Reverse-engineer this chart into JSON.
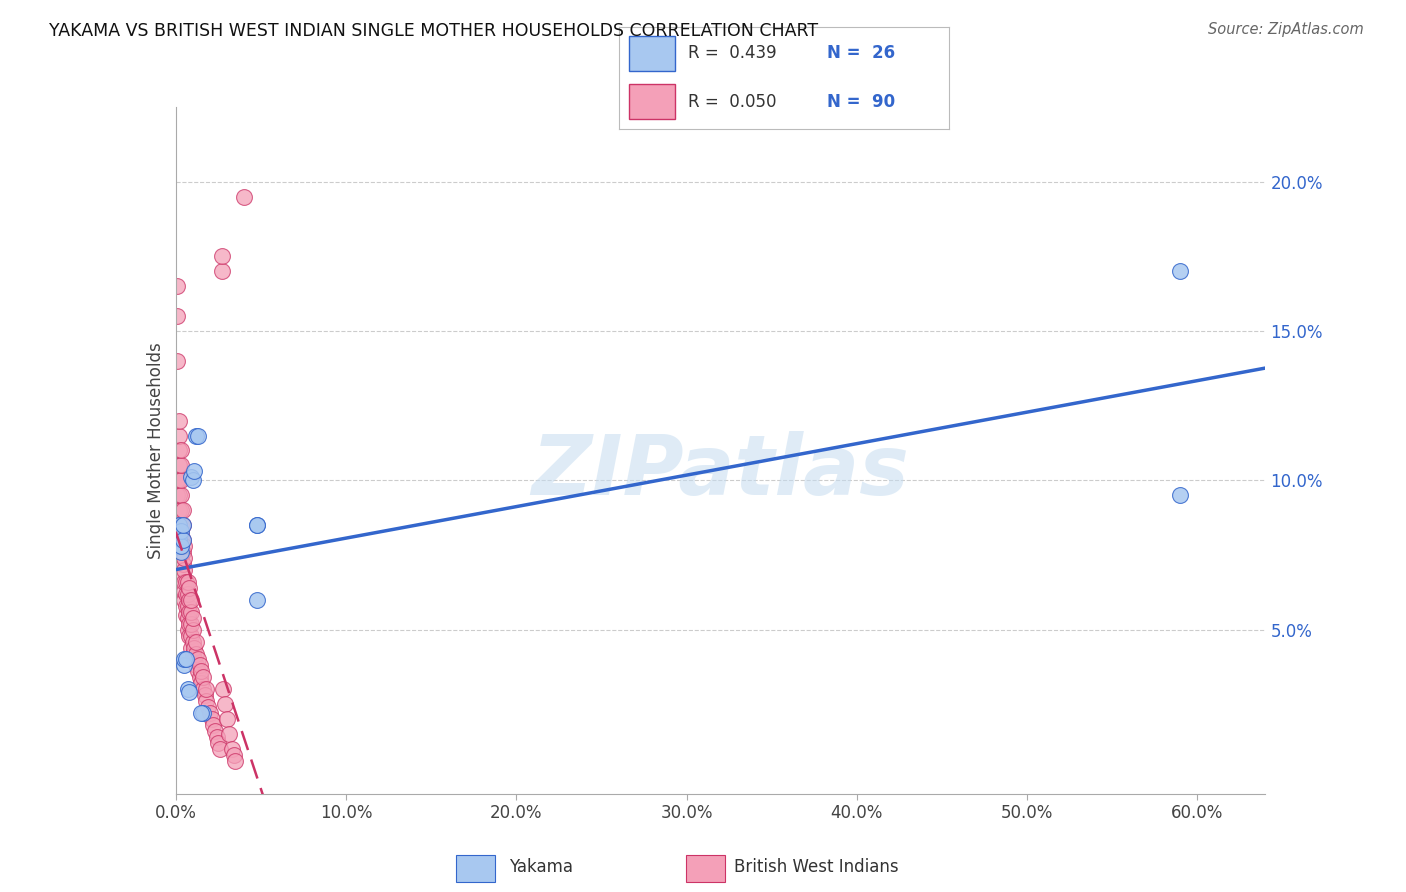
{
  "title": "YAKAMA VS BRITISH WEST INDIAN SINGLE MOTHER HOUSEHOLDS CORRELATION CHART",
  "source": "Source: ZipAtlas.com",
  "ylabel_label": "Single Mother Households",
  "legend_label_yakama": "Yakama",
  "legend_label_bwi": "British West Indians",
  "legend_R_yakama": "0.439",
  "legend_N_yakama": "26",
  "legend_R_bwi": "0.050",
  "legend_N_bwi": "90",
  "watermark": "ZIPatlas",
  "color_yakama": "#a8c8f0",
  "color_bwi": "#f4a0b8",
  "color_line_yakama": "#3366cc",
  "color_line_bwi": "#cc3366",
  "xlim": [
    0.0,
    0.64
  ],
  "ylim": [
    -0.005,
    0.225
  ],
  "yakama_x": [
    0.001,
    0.001,
    0.002,
    0.002,
    0.003,
    0.003,
    0.003,
    0.004,
    0.004,
    0.005,
    0.005,
    0.006,
    0.007,
    0.008,
    0.009,
    0.01,
    0.011,
    0.012,
    0.013,
    0.048,
    0.048,
    0.048,
    0.016,
    0.015,
    0.59,
    0.59
  ],
  "yakama_y": [
    0.078,
    0.082,
    0.08,
    0.085,
    0.076,
    0.078,
    0.083,
    0.08,
    0.085,
    0.038,
    0.04,
    0.04,
    0.03,
    0.029,
    0.101,
    0.1,
    0.103,
    0.115,
    0.115,
    0.085,
    0.085,
    0.06,
    0.022,
    0.022,
    0.17,
    0.095
  ],
  "bwi_x": [
    0.001,
    0.001,
    0.001,
    0.001,
    0.001,
    0.002,
    0.002,
    0.002,
    0.002,
    0.002,
    0.002,
    0.002,
    0.003,
    0.003,
    0.003,
    0.003,
    0.003,
    0.003,
    0.003,
    0.003,
    0.003,
    0.004,
    0.004,
    0.004,
    0.004,
    0.004,
    0.004,
    0.005,
    0.005,
    0.005,
    0.005,
    0.005,
    0.005,
    0.006,
    0.006,
    0.006,
    0.006,
    0.007,
    0.007,
    0.007,
    0.007,
    0.007,
    0.008,
    0.008,
    0.008,
    0.008,
    0.008,
    0.009,
    0.009,
    0.009,
    0.009,
    0.009,
    0.01,
    0.01,
    0.01,
    0.01,
    0.011,
    0.011,
    0.012,
    0.012,
    0.012,
    0.013,
    0.013,
    0.014,
    0.014,
    0.015,
    0.015,
    0.016,
    0.016,
    0.017,
    0.018,
    0.018,
    0.019,
    0.02,
    0.021,
    0.022,
    0.023,
    0.024,
    0.025,
    0.026,
    0.027,
    0.027,
    0.028,
    0.029,
    0.03,
    0.031,
    0.033,
    0.034,
    0.035,
    0.04
  ],
  "bwi_y": [
    0.095,
    0.1,
    0.14,
    0.155,
    0.165,
    0.09,
    0.095,
    0.1,
    0.105,
    0.11,
    0.115,
    0.12,
    0.075,
    0.08,
    0.082,
    0.085,
    0.09,
    0.095,
    0.1,
    0.105,
    0.11,
    0.068,
    0.072,
    0.076,
    0.08,
    0.085,
    0.09,
    0.06,
    0.063,
    0.066,
    0.07,
    0.074,
    0.078,
    0.055,
    0.058,
    0.062,
    0.066,
    0.05,
    0.054,
    0.058,
    0.062,
    0.066,
    0.048,
    0.052,
    0.056,
    0.06,
    0.064,
    0.044,
    0.048,
    0.052,
    0.056,
    0.06,
    0.042,
    0.046,
    0.05,
    0.054,
    0.04,
    0.044,
    0.038,
    0.042,
    0.046,
    0.036,
    0.04,
    0.034,
    0.038,
    0.032,
    0.036,
    0.03,
    0.034,
    0.028,
    0.026,
    0.03,
    0.024,
    0.022,
    0.02,
    0.018,
    0.016,
    0.014,
    0.012,
    0.01,
    0.17,
    0.175,
    0.03,
    0.025,
    0.02,
    0.015,
    0.01,
    0.008,
    0.006,
    0.195
  ]
}
